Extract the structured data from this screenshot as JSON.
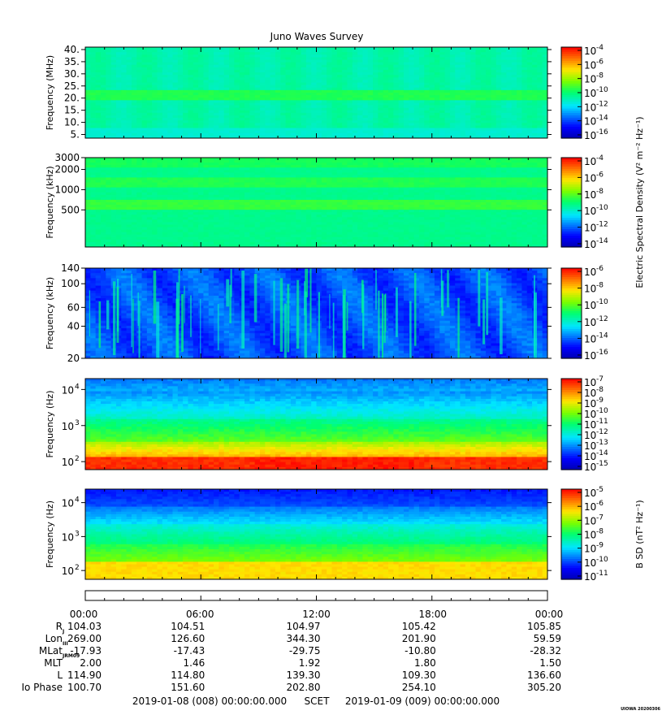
{
  "chart_data": {
    "type": "heatmap",
    "title": "Juno Waves Survey",
    "panels": [
      {
        "ylabel": "Frequency (MHz)",
        "yscale": "linear",
        "ylim": [
          3.5,
          41
        ],
        "yticks": [
          "5.",
          "10.",
          "15.",
          "20.",
          "25.",
          "30.",
          "35.",
          "40."
        ],
        "ytick_values": [
          5,
          10,
          15,
          20,
          25,
          30,
          35,
          40
        ],
        "cbar_ticks": [
          "-4",
          "-6",
          "-8",
          "-10",
          "-12",
          "-14",
          "-16"
        ],
        "cbar_label": "",
        "palette": "hfr",
        "seed": 11
      },
      {
        "ylabel": "Frequency (kHz)",
        "yscale": "log",
        "ylim": [
          140,
          3000
        ],
        "yticks": [
          "3000",
          "2000",
          "1000",
          "500"
        ],
        "ytick_values": [
          3000,
          2000,
          1000,
          500
        ],
        "cbar_ticks": [
          "-4",
          "-6",
          "-8",
          "-10",
          "-12",
          "-14"
        ],
        "cbar_label": "",
        "palette": "hfrlow",
        "seed": 23
      },
      {
        "ylabel": "Frequency (kHz)",
        "yscale": "log",
        "ylim": [
          20,
          140
        ],
        "yticks": [
          "140",
          "100",
          "60",
          "40",
          "20"
        ],
        "ytick_values": [
          140,
          100,
          60,
          40,
          20
        ],
        "cbar_ticks": [
          "-6",
          "-8",
          "-10",
          "-12",
          "-14",
          "-16"
        ],
        "cbar_label": "",
        "palette": "lfrhi",
        "seed": 37
      },
      {
        "ylabel": "Frequency (Hz)",
        "yscale": "log",
        "ylim": [
          60,
          20000
        ],
        "yticks_mant": [
          "10",
          "10",
          "10"
        ],
        "yticks_exp": [
          "4",
          "3",
          "2"
        ],
        "ytick_values": [
          10000,
          1000,
          100
        ],
        "cbar_ticks": [
          "-7",
          "-8",
          "-9",
          "-10",
          "-11",
          "-12",
          "-13",
          "-14",
          "-15"
        ],
        "cbar_label": "",
        "palette": "lfrlo",
        "seed": 53
      },
      {
        "ylabel": "Frequency (Hz)",
        "yscale": "log",
        "ylim": [
          55,
          25000
        ],
        "yticks_mant": [
          "10",
          "10",
          "10"
        ],
        "yticks_exp": [
          "4",
          "3",
          "2"
        ],
        "ytick_values": [
          10000,
          1000,
          100
        ],
        "cbar_ticks": [
          "-5",
          "-6",
          "-7",
          "-8",
          "-9",
          "-10",
          "-11"
        ],
        "cbar_label": "B SD (nT² Hz⁻¹)",
        "palette": "mag",
        "seed": 71
      }
    ],
    "electric_cbar_label": "Electric Spectral Density (V² m⁻² Hz⁻¹)",
    "x_ticks": [
      "00:00",
      "06:00",
      "12:00",
      "18:00",
      "00:00"
    ],
    "ephemeris": {
      "labels": [
        "Rj",
        "LonIII",
        "MLatJRM09",
        "MLT",
        "L",
        "Io Phase"
      ],
      "label_parts": [
        {
          "main": "R",
          "sub": "J"
        },
        {
          "main": "Lon",
          "sub": "III"
        },
        {
          "main": "MLat",
          "sub": "JRM09"
        },
        {
          "main": "MLT",
          "sub": ""
        },
        {
          "main": "L",
          "sub": ""
        },
        {
          "main": "Io Phase",
          "sub": ""
        }
      ],
      "rows": [
        [
          "104.03",
          "104.51",
          "104.97",
          "105.42",
          "105.85"
        ],
        [
          "269.00",
          "126.60",
          "344.30",
          "201.90",
          "59.59"
        ],
        [
          "-17.93",
          "-17.43",
          "-29.75",
          "-10.80",
          "-28.32"
        ],
        [
          "2.00",
          "1.46",
          "1.92",
          "1.80",
          "1.50"
        ],
        [
          "114.90",
          "114.80",
          "139.30",
          "109.30",
          "136.60"
        ],
        [
          "100.70",
          "151.60",
          "202.80",
          "254.10",
          "305.20"
        ]
      ]
    },
    "time_range": {
      "start": "2019-01-08 (008) 00:00:00.000",
      "scet": "SCET",
      "end": "2019-01-09 (009) 00:00:00.000"
    },
    "credit": "UIOWA 20200306"
  }
}
